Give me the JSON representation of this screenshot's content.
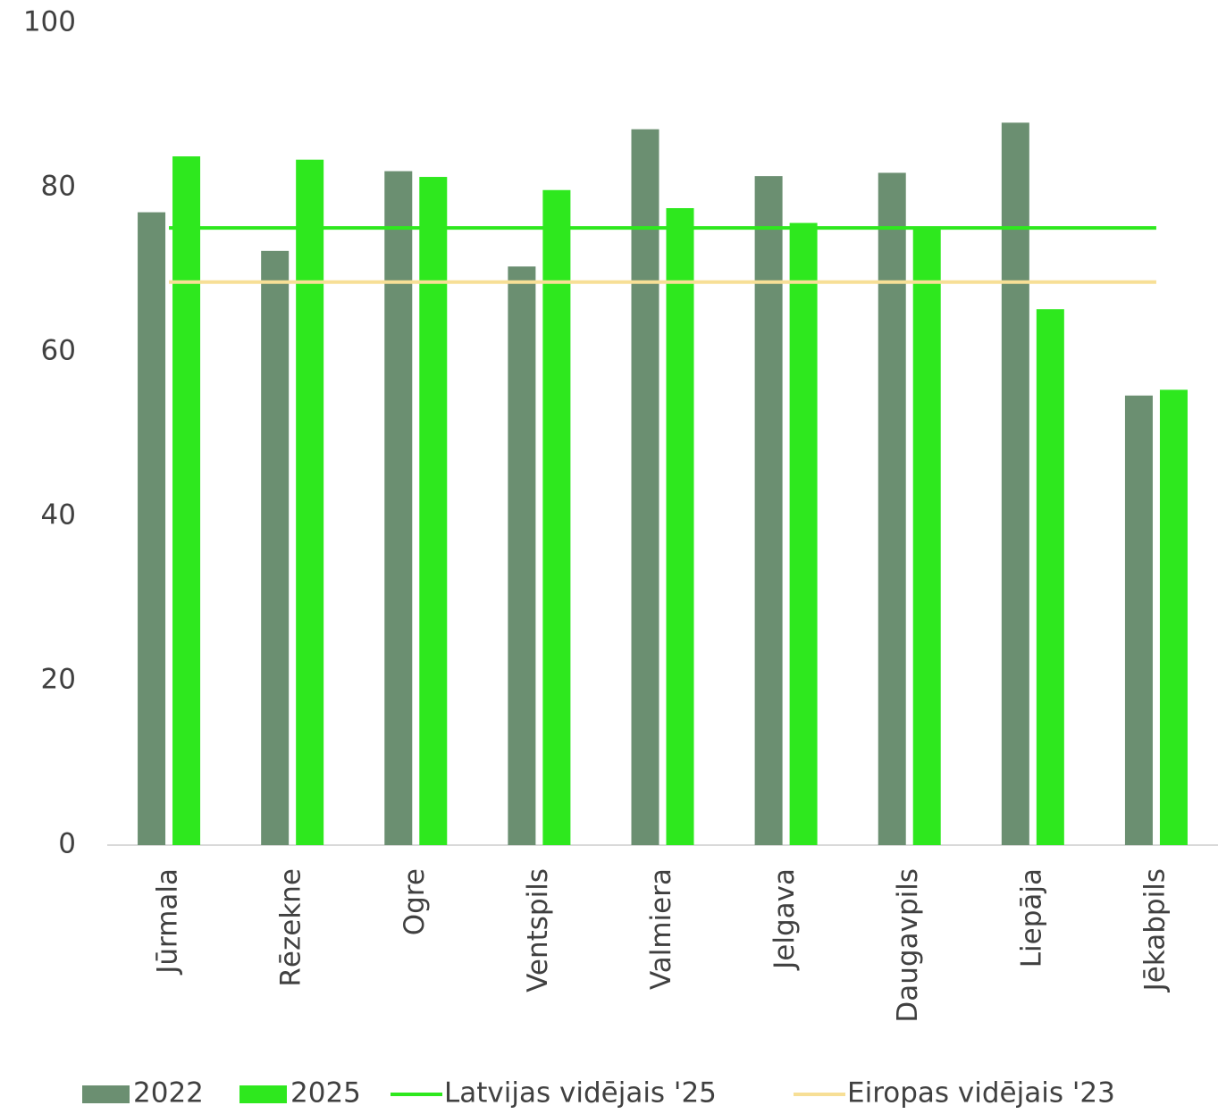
{
  "chart_data": {
    "type": "bar",
    "categories": [
      "Jūrmala",
      "Rēzekne",
      "Ogre",
      "Ventspils",
      "Valmiera",
      "Jelgava",
      "Daugavpils",
      "Liepāja",
      "Jēkabpils"
    ],
    "series": [
      {
        "name": "2022",
        "color": "#6b8f71",
        "values": [
          77.0,
          72.3,
          82.0,
          70.4,
          87.1,
          81.4,
          81.8,
          87.9,
          54.7
        ]
      },
      {
        "name": "2025",
        "color": "#2ee81e",
        "values": [
          83.8,
          83.4,
          81.3,
          79.7,
          77.5,
          75.7,
          75.1,
          65.2,
          55.4
        ]
      }
    ],
    "reference_lines": [
      {
        "name": "Latvijas vidējais '25",
        "color": "#2ee81e",
        "value": 75.1
      },
      {
        "name": "Eiropas vidējais '23",
        "color": "#f7df96",
        "value": 68.5
      }
    ],
    "ylim": [
      0,
      100
    ],
    "yticks": [
      0,
      20,
      40,
      60,
      80,
      100
    ],
    "grid": false,
    "legend": "bottom"
  }
}
